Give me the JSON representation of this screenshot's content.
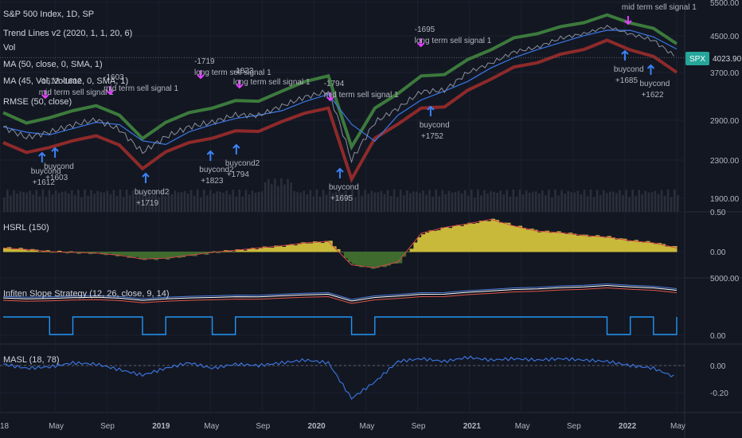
{
  "header": {
    "symbol_line": "S&P 500 Index, 1D, SP",
    "indicators": [
      "Trend Lines v2 (2020, 1, 1, 20, 6)",
      "Vol",
      "MA (50, close, 0, SMA, 1)",
      "MA (45, Vol, Volume, 0, SMA, 1)",
      "RMSE (50, close)"
    ]
  },
  "price_badge": {
    "symbol": "SPX",
    "value": "4023.90",
    "color": "#26a69a"
  },
  "colors": {
    "background": "#131722",
    "grid": "#2a2e39",
    "upper_band": "#3c7a3c",
    "lower_band": "#8e2a2a",
    "ma": "#3b78e7",
    "price": "#8a8f9c",
    "signal_sell": "#e040fb",
    "signal_buy": "#3b82f6",
    "hsrl_up": "#c9b93a",
    "hsrl_down": "#3f6b2e",
    "slope_blue": "#2196f3",
    "masl_line": "#3b78e7"
  },
  "x_axis": {
    "ticks": [
      "18",
      "May",
      "Sep",
      "2019",
      "May",
      "Sep",
      "2020",
      "May",
      "Sep",
      "2021",
      "May",
      "Sep",
      "2022",
      "May"
    ],
    "bold": [
      "2019",
      "2020",
      "2021",
      "2022"
    ]
  },
  "chart_data": [
    {
      "type": "line",
      "title": "S&P 500 Index, 1D, SP",
      "y_ticks": [
        "5500.00",
        "4500.00",
        "3700.00",
        "2900.00",
        "2300.00",
        "1900.00"
      ],
      "last_price": 4023.9,
      "x": [
        "2018-01",
        "2018-03",
        "2018-05",
        "2018-07",
        "2018-09",
        "2018-10",
        "2018-12",
        "2019-01",
        "2019-03",
        "2019-05",
        "2019-07",
        "2019-09",
        "2019-11",
        "2020-01",
        "2020-02",
        "2020-03",
        "2020-04",
        "2020-06",
        "2020-08",
        "2020-10",
        "2020-12",
        "2021-02",
        "2021-04",
        "2021-06",
        "2021-08",
        "2021-10",
        "2021-12",
        "2022-01",
        "2022-03",
        "2022-05"
      ],
      "series": [
        {
          "values": [
            2800,
            2640,
            2720,
            2830,
            2910,
            2760,
            2420,
            2650,
            2800,
            2870,
            2990,
            2980,
            3140,
            3290,
            3380,
            2300,
            2870,
            3100,
            3380,
            3400,
            3700,
            3900,
            4150,
            4250,
            4450,
            4560,
            4780,
            4550,
            4400,
            4024
          ]
        }
      ],
      "annotations_sell": [
        {
          "text": "-1612 -1612",
          "date": "2018-04"
        },
        {
          "text": "mid term sell signal 1",
          "date": "2018-04"
        },
        {
          "text": "-1603",
          "date": "2018-09"
        },
        {
          "text": "mid term sell signal 1",
          "date": "2018-09"
        },
        {
          "text": "-1719",
          "date": "2019-04"
        },
        {
          "text": "long term sell signal 1",
          "date": "2019-04"
        },
        {
          "text": "-1823",
          "date": "2019-07"
        },
        {
          "text": "long term sell signal 1",
          "date": "2019-07"
        },
        {
          "text": "-1794",
          "date": "2020-02"
        },
        {
          "text": "mid term sell signal 1",
          "date": "2020-02"
        },
        {
          "text": "-1695",
          "date": "2020-09"
        },
        {
          "text": "long term sell signal 1",
          "date": "2020-09"
        },
        {
          "text": "mid term sell signal 1",
          "date": "2022-01"
        }
      ],
      "annotations_buy": [
        {
          "text": "buycond",
          "sub": "+1612",
          "date": "2018-04"
        },
        {
          "text": "buycond",
          "sub": "+1603",
          "date": "2018-05"
        },
        {
          "text": "buycond2",
          "sub": "+1719",
          "date": "2018-12"
        },
        {
          "text": "buycond2",
          "sub": "+1823",
          "date": "2019-05"
        },
        {
          "text": "buycond2",
          "sub": "+1794",
          "date": "2019-07"
        },
        {
          "text": "buycond",
          "sub": "+1695",
          "date": "2020-03"
        },
        {
          "text": "buycond",
          "sub": "+1752",
          "date": "2020-10"
        },
        {
          "text": "buycond",
          "sub": "+1685",
          "date": "2022-01"
        },
        {
          "text": "buycond",
          "sub": "+1622",
          "date": "2022-03"
        }
      ]
    },
    {
      "type": "area",
      "title": "HSRL (150)",
      "y_ticks": [
        "0.50",
        "0.00"
      ],
      "x": [
        "2018-01",
        "2018-03",
        "2018-05",
        "2018-07",
        "2018-09",
        "2018-10",
        "2018-12",
        "2019-01",
        "2019-03",
        "2019-05",
        "2019-07",
        "2019-09",
        "2019-11",
        "2020-01",
        "2020-02",
        "2020-03",
        "2020-04",
        "2020-06",
        "2020-08",
        "2020-10",
        "2020-12",
        "2021-02",
        "2021-04",
        "2021-06",
        "2021-08",
        "2021-10",
        "2021-12",
        "2022-01",
        "2022-03",
        "2022-05"
      ],
      "values": [
        0.05,
        0.03,
        0.0,
        -0.01,
        -0.02,
        -0.05,
        -0.1,
        -0.09,
        -0.05,
        -0.01,
        0.02,
        0.05,
        0.08,
        0.12,
        0.14,
        -0.18,
        -0.22,
        -0.14,
        0.25,
        0.33,
        0.38,
        0.44,
        0.35,
        0.28,
        0.26,
        0.22,
        0.2,
        0.15,
        0.12,
        0.05
      ]
    },
    {
      "type": "line",
      "title": "Infiten Slope Strategy (12, 26, close, 9, 14)",
      "y_ticks": [
        "5000.00",
        "0.00"
      ],
      "series": [
        {
          "values": [
            1700,
            1700,
            0,
            1700,
            1700,
            1700,
            0,
            1700,
            1700,
            0,
            1700,
            1700,
            1700,
            1700,
            1700,
            0,
            1700,
            1700,
            1700,
            1700,
            1700,
            1700,
            1700,
            1700,
            1700,
            1700,
            0,
            1700,
            0,
            1700
          ]
        }
      ]
    },
    {
      "type": "line",
      "title": "MASL (18, 78)",
      "y_ticks": [
        "0.00",
        "-0.20"
      ],
      "series": [
        {
          "values": [
            0.01,
            -0.02,
            -0.01,
            0.02,
            0.01,
            -0.03,
            -0.07,
            -0.02,
            0.02,
            -0.02,
            0.01,
            0.0,
            0.02,
            0.04,
            0.02,
            -0.24,
            -0.12,
            0.03,
            0.05,
            0.03,
            0.06,
            0.04,
            0.05,
            0.04,
            0.05,
            0.04,
            0.03,
            0.0,
            -0.02,
            -0.09
          ]
        }
      ]
    }
  ]
}
